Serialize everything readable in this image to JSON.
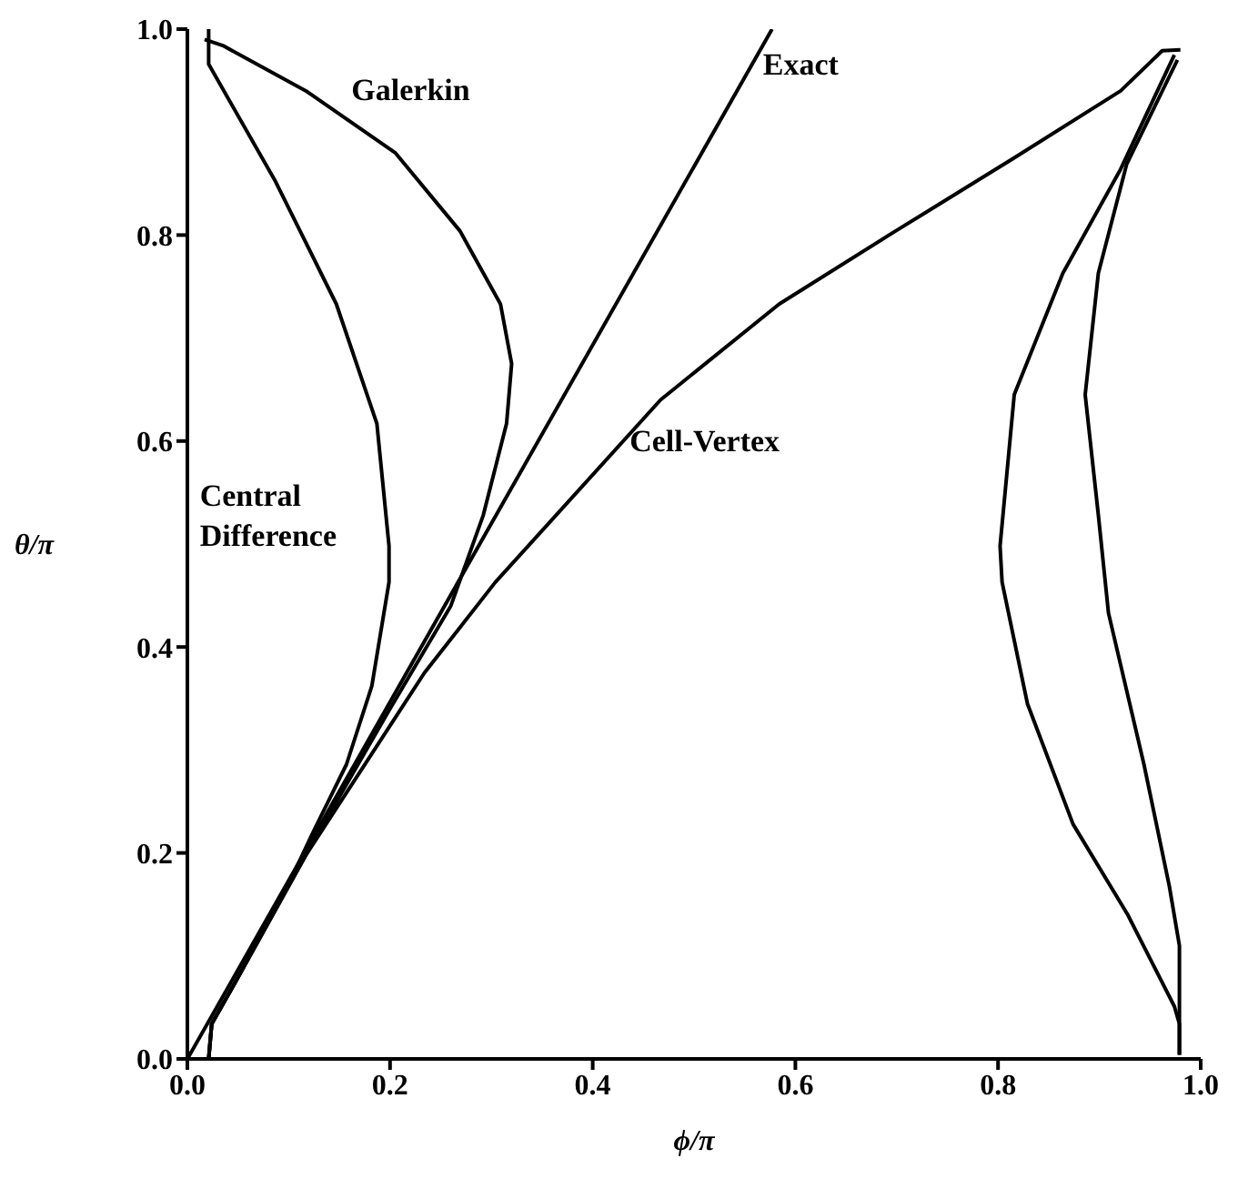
{
  "chart_data": {
    "type": "line",
    "xlabel": "ϕ/π",
    "ylabel": "θ/π",
    "xlim": [
      0,
      1
    ],
    "ylim": [
      0,
      1
    ],
    "xticks": [
      {
        "value": 0,
        "label": "0.0"
      },
      {
        "value": 0.2,
        "label": "0.2"
      },
      {
        "value": 0.4,
        "label": "0.4"
      },
      {
        "value": 0.6,
        "label": "0.6"
      },
      {
        "value": 0.8,
        "label": "0.8"
      },
      {
        "value": 1,
        "label": "1.0"
      }
    ],
    "yticks": [
      {
        "value": 0,
        "label": "0.0"
      },
      {
        "value": 0.2,
        "label": "0.2"
      },
      {
        "value": 0.4,
        "label": "0.4"
      },
      {
        "value": 0.6,
        "label": "0.6"
      },
      {
        "value": 0.8,
        "label": "0.8"
      },
      {
        "value": 1,
        "label": "1.0"
      }
    ],
    "grid": false,
    "legend": false,
    "marker": "none",
    "line_style": "solid",
    "series": [
      {
        "name": "Exact",
        "color": "#000000",
        "x": [
          0,
          0.577
        ],
        "values": [
          0,
          1
        ]
      },
      {
        "name": "Galerkin",
        "color": "#000000",
        "x": [
          0.021,
          0.024,
          0.047,
          0.117,
          0.2,
          0.26,
          0.292,
          0.315,
          0.32,
          0.309,
          0.269,
          0.205,
          0.117,
          0.035,
          0.017
        ],
        "values": [
          0,
          0.034,
          0.074,
          0.198,
          0.34,
          0.44,
          0.528,
          0.617,
          0.675,
          0.733,
          0.804,
          0.88,
          0.94,
          0.984,
          0.99
        ]
      },
      {
        "name": "Central Difference",
        "color": "#000000",
        "x": [
          0.021,
          0.024,
          0.047,
          0.1,
          0.122,
          0.157,
          0.182,
          0.199,
          0.199,
          0.187,
          0.147,
          0.087,
          0.021,
          0.021
        ],
        "values": [
          0,
          0.034,
          0.074,
          0.17,
          0.216,
          0.286,
          0.362,
          0.463,
          0.498,
          0.617,
          0.733,
          0.852,
          0.966,
          1
        ]
      },
      {
        "name": "Cell-Vertex",
        "color": "#000000",
        "x": [
          0.021,
          0.024,
          0.047,
          0.117,
          0.234,
          0.304,
          0.467,
          0.584,
          0.699,
          0.816,
          0.921,
          0.962,
          0.98
        ],
        "values": [
          0,
          0.034,
          0.074,
          0.198,
          0.375,
          0.463,
          0.64,
          0.733,
          0.804,
          0.875,
          0.94,
          0.979,
          0.98
        ]
      },
      {
        "color": "#000000",
        "x": [
          0.979,
          0.979,
          0.974,
          0.928,
          0.874,
          0.829,
          0.804,
          0.802,
          0.816,
          0.864,
          0.921,
          0.974
        ],
        "values": [
          0.004,
          0.034,
          0.051,
          0.14,
          0.228,
          0.345,
          0.463,
          0.498,
          0.645,
          0.763,
          0.864,
          0.975
        ]
      },
      {
        "color": "#000000",
        "x": [
          0.979,
          0.979,
          0.969,
          0.944,
          0.909,
          0.899,
          0.886,
          0.899,
          0.927,
          0.977
        ],
        "values": [
          0.004,
          0.11,
          0.168,
          0.286,
          0.433,
          0.528,
          0.645,
          0.763,
          0.869,
          0.97
        ]
      }
    ]
  }
}
